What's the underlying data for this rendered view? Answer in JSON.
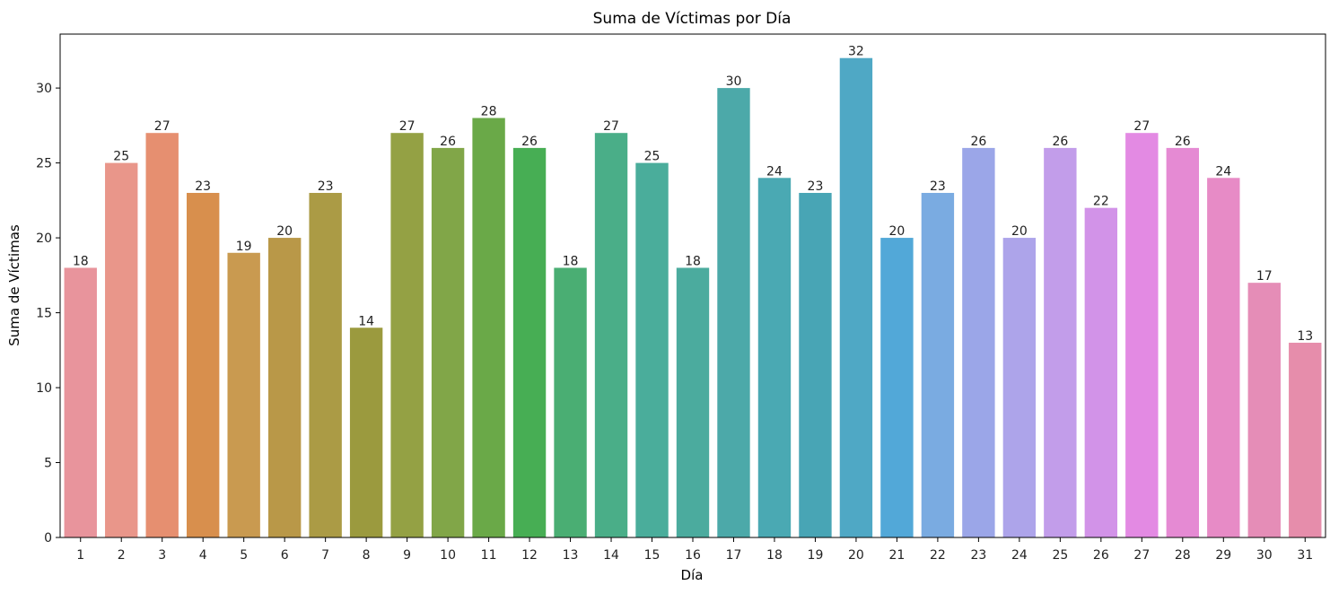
{
  "chart_data": {
    "type": "bar",
    "title": "Suma de Víctimas por Día",
    "xlabel": "Día",
    "ylabel": "Suma de Víctimas",
    "ylim": [
      0,
      33.6
    ],
    "yticks": [
      0,
      5,
      10,
      15,
      20,
      25,
      30
    ],
    "categories": [
      "1",
      "2",
      "3",
      "4",
      "5",
      "6",
      "7",
      "8",
      "9",
      "10",
      "11",
      "12",
      "13",
      "14",
      "15",
      "16",
      "17",
      "18",
      "19",
      "20",
      "21",
      "22",
      "23",
      "24",
      "25",
      "26",
      "27",
      "28",
      "29",
      "30",
      "31"
    ],
    "values": [
      18,
      25,
      27,
      23,
      19,
      20,
      23,
      14,
      27,
      26,
      28,
      26,
      18,
      27,
      25,
      18,
      30,
      24,
      23,
      32,
      20,
      23,
      26,
      20,
      26,
      22,
      27,
      26,
      24,
      17,
      13
    ],
    "colors": [
      "#e8949c",
      "#e9968a",
      "#e68f70",
      "#d88f4d",
      "#c99a50",
      "#b99848",
      "#ab9b45",
      "#9b9a3e",
      "#94a144",
      "#81a648",
      "#6aa948",
      "#47ae54",
      "#4aae73",
      "#4aae88",
      "#4aad9b",
      "#4bab9e",
      "#4ca9a9",
      "#4aa9b3",
      "#48a5b5",
      "#4fa8c5",
      "#52a8d8",
      "#7aabe1",
      "#9ba6e8",
      "#ada4ea",
      "#c29dea",
      "#d293e8",
      "#e38ae3",
      "#e58ad3",
      "#e78bc6",
      "#e58db7",
      "#e68dab"
    ],
    "grid": false,
    "legend": "none"
  }
}
